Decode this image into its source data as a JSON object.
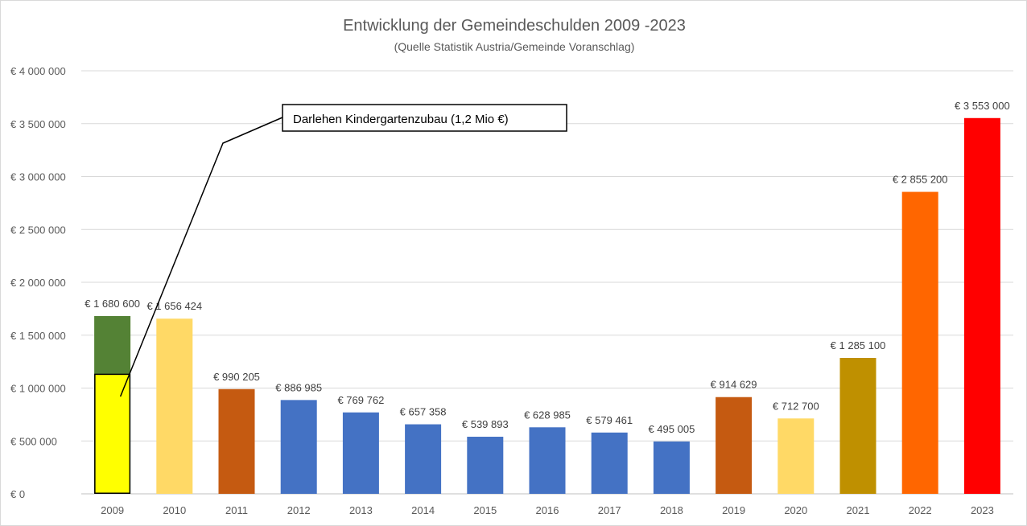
{
  "chart_data": {
    "type": "bar",
    "title": "Entwicklung der Gemeindeschulden 2009 -2023",
    "subtitle": "(Quelle Statistik Austria/Gemeinde Voranschlag)",
    "xlabel": "",
    "ylabel": "",
    "categories": [
      "2009",
      "2010",
      "2011",
      "2012",
      "2013",
      "2014",
      "2015",
      "2016",
      "2017",
      "2018",
      "2019",
      "2020",
      "2021",
      "2022",
      "2023"
    ],
    "values": [
      1680600,
      1656424,
      990205,
      886985,
      769762,
      657358,
      539893,
      628985,
      579461,
      495005,
      914629,
      712700,
      1285100,
      2855200,
      3553000
    ],
    "data_labels": [
      "€ 1 680 600",
      "€ 1 656 424",
      "€ 990 205",
      "€ 886 985",
      "€ 769 762",
      "€ 657 358",
      "€ 539 893",
      "€ 628 985",
      "€ 579 461",
      "€ 495 005",
      "€ 914 629",
      "€ 712 700",
      "€ 1 285 100",
      "€ 2 855 200",
      "€ 3 553 000"
    ],
    "colors": [
      "#548235",
      "#ffd966",
      "#c55a11",
      "#4472c4",
      "#4472c4",
      "#4472c4",
      "#4472c4",
      "#4472c4",
      "#4472c4",
      "#4472c4",
      "#c55a11",
      "#ffd966",
      "#bf9000",
      "#ff6600",
      "#ff0000"
    ],
    "ylim": [
      0,
      4000000
    ],
    "yticks": [
      0,
      500000,
      1000000,
      1500000,
      2000000,
      2500000,
      3000000,
      3500000,
      4000000
    ],
    "ytick_labels": [
      "€ 0",
      "€ 500 000",
      "€ 1 000 000",
      "€ 1 500 000",
      "€ 2 000 000",
      "€ 2 500 000",
      "€ 3 000 000",
      "€ 3 500 000",
      "€ 4 000 000"
    ],
    "grid": true,
    "highlight": {
      "category": "2009",
      "value": 1130000,
      "color": "#ffff00",
      "border_color": "#000000"
    },
    "annotation": {
      "text": "Darlehen Kindergartenzubau (1,2 Mio €)",
      "target_category": "2009",
      "target_value": 920000
    }
  }
}
